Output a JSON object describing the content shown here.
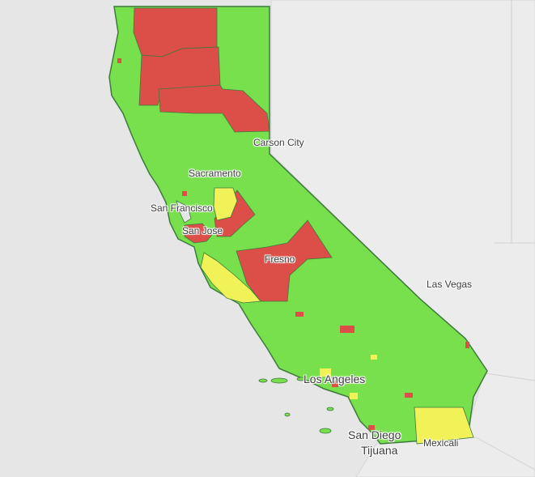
{
  "map": {
    "colors": {
      "background": "#e6e6e6",
      "neighbor_land": "#ececec",
      "border": "#d0d0d0",
      "green": "#77e04c",
      "red": "#dc4e48",
      "yellow": "#f1f258",
      "outline": "#3e7a3e"
    },
    "legend_meaning": {
      "green": "green",
      "red": "red",
      "yellow": "yellow"
    }
  },
  "labels": {
    "carson_city": "Carson City",
    "sacramento": "Sacramento",
    "san_francisco": "San Francisco",
    "san_jose": "San Jose",
    "fresno": "Fresno",
    "las_vegas": "Las Vegas",
    "los_angeles": "Los Angeles",
    "san_diego": "San Diego",
    "tijuana": "Tijuana",
    "mexicali": "Mexicali"
  }
}
